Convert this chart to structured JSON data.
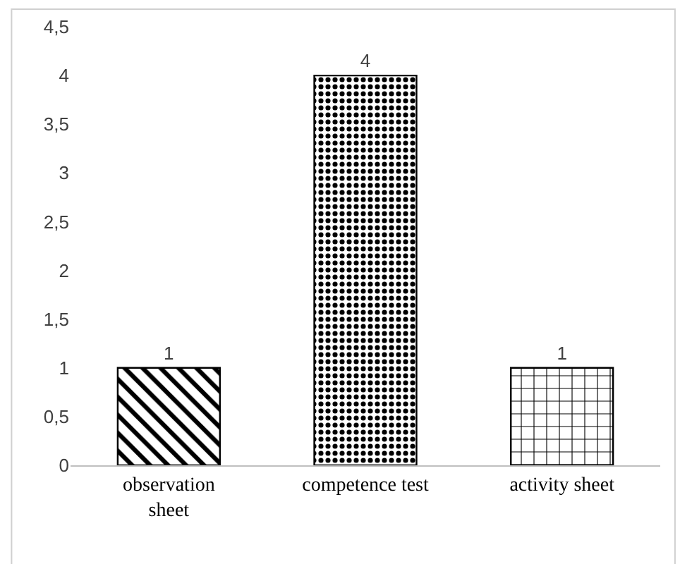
{
  "chart_data": {
    "type": "bar",
    "categories": [
      "observation\nsheet",
      "competence test",
      "activity sheet"
    ],
    "values": [
      1,
      4,
      1
    ],
    "colors": [
      "#000000",
      "#000000",
      "#000000"
    ],
    "ylim": [
      0,
      4.5
    ],
    "yticks": [
      0,
      {
        "value": 0.5,
        "label": "0,5"
      },
      1,
      {
        "value": 1.5,
        "label": "1,5"
      },
      2,
      {
        "value": 2.5,
        "label": "2,5"
      },
      3,
      {
        "value": 3.5,
        "label": "3,5"
      },
      4,
      {
        "value": 4.5,
        "label": "4,5"
      }
    ],
    "data_labels": true,
    "legend": false
  }
}
